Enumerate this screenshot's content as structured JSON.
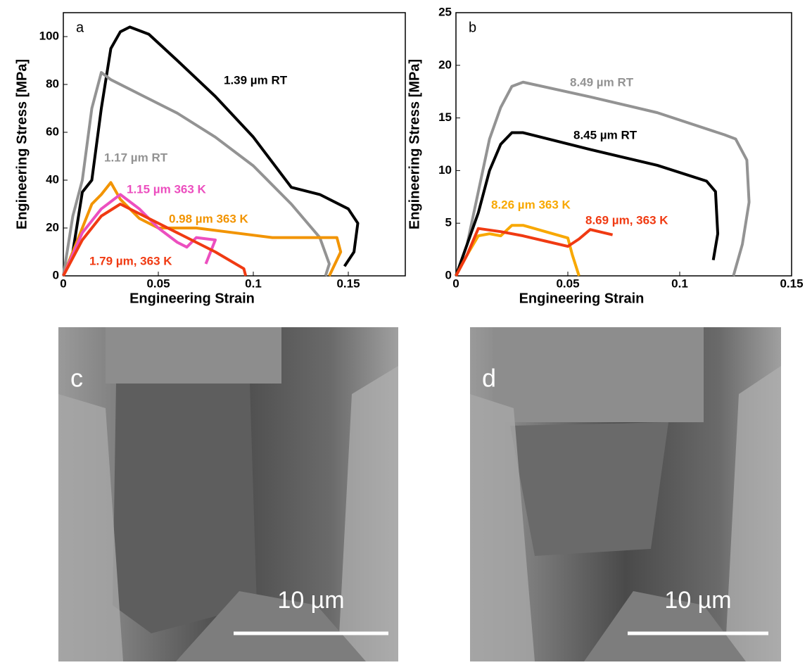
{
  "chart_data": [
    {
      "type": "line",
      "panel": "a",
      "xlabel": "Engineering Strain",
      "ylabel": "Engineering Stress [MPa]",
      "xlim": [
        0,
        0.18
      ],
      "ylim": [
        0,
        110
      ],
      "xticks": [
        0,
        0.05,
        0.1,
        0.15
      ],
      "yticks": [
        0,
        20,
        40,
        60,
        80,
        100
      ],
      "series": [
        {
          "name": "1.39 µm RT",
          "color": "#000000",
          "x": [
            0,
            0.005,
            0.01,
            0.015,
            0.02,
            0.025,
            0.03,
            0.035,
            0.045,
            0.06,
            0.08,
            0.1,
            0.12,
            0.135,
            0.15,
            0.155,
            0.153,
            0.148
          ],
          "values": [
            0,
            10,
            35,
            40,
            70,
            95,
            102,
            104,
            101,
            90,
            75,
            58,
            37,
            34,
            28,
            22,
            10,
            4
          ]
        },
        {
          "name": "1.17 µm RT",
          "color": "#939393",
          "x": [
            0,
            0.005,
            0.01,
            0.015,
            0.02,
            0.025,
            0.04,
            0.06,
            0.08,
            0.1,
            0.12,
            0.135,
            0.14,
            0.138
          ],
          "values": [
            0,
            25,
            40,
            70,
            85,
            82,
            76,
            68,
            58,
            46,
            30,
            16,
            5,
            0
          ]
        },
        {
          "name": "0.98 µm 363 K",
          "color": "#f29400",
          "x": [
            0,
            0.01,
            0.015,
            0.02,
            0.025,
            0.03,
            0.04,
            0.05,
            0.07,
            0.09,
            0.11,
            0.13,
            0.144,
            0.146,
            0.14
          ],
          "values": [
            0,
            20,
            30,
            34,
            39,
            32,
            24,
            20,
            20,
            18,
            16,
            16,
            16,
            10,
            0
          ]
        },
        {
          "name": "1.15 µm 363 K",
          "color": "#ec4fbf",
          "x": [
            0,
            0.01,
            0.02,
            0.03,
            0.04,
            0.05,
            0.06,
            0.065,
            0.07,
            0.08,
            0.075
          ],
          "values": [
            0,
            18,
            28,
            34,
            28,
            20,
            14,
            12,
            16,
            15,
            5
          ]
        },
        {
          "name": "1.79 µm, 363 K",
          "color": "#f03a12",
          "x": [
            0,
            0.01,
            0.02,
            0.03,
            0.04,
            0.06,
            0.08,
            0.095,
            0.096
          ],
          "values": [
            0,
            15,
            25,
            30,
            26,
            18,
            10,
            3,
            0
          ]
        }
      ]
    },
    {
      "type": "line",
      "panel": "b",
      "xlabel": "Engineering Strain",
      "ylabel": "Engineering Stress [MPa]",
      "xlim": [
        0,
        0.15
      ],
      "ylim": [
        0,
        25
      ],
      "xticks": [
        0,
        0.05,
        0.1,
        0.15
      ],
      "yticks": [
        0,
        5,
        10,
        15,
        20,
        25
      ],
      "series": [
        {
          "name": "8.49 µm RT",
          "color": "#939393",
          "x": [
            0,
            0.005,
            0.01,
            0.015,
            0.02,
            0.025,
            0.03,
            0.06,
            0.09,
            0.12,
            0.125,
            0.13,
            0.131,
            0.128,
            0.124
          ],
          "values": [
            0,
            3,
            8,
            13,
            16,
            18,
            18.4,
            17,
            15.5,
            13.4,
            13,
            11,
            7,
            3,
            0
          ]
        },
        {
          "name": "8.45 µm RT",
          "color": "#000000",
          "x": [
            0,
            0.005,
            0.01,
            0.015,
            0.02,
            0.025,
            0.03,
            0.06,
            0.09,
            0.112,
            0.116,
            0.117,
            0.115
          ],
          "values": [
            0,
            3,
            6,
            10,
            12.5,
            13.6,
            13.6,
            12,
            10.5,
            9,
            8,
            4,
            1.5
          ]
        },
        {
          "name": "8.26 µm 363 K",
          "color": "#f8a800",
          "x": [
            0,
            0.005,
            0.01,
            0.015,
            0.02,
            0.025,
            0.03,
            0.04,
            0.05,
            0.052,
            0.055
          ],
          "values": [
            0,
            2,
            3.8,
            4,
            3.8,
            4.8,
            4.8,
            4.2,
            3.6,
            2,
            0
          ]
        },
        {
          "name": "8.69 µm, 363 K",
          "color": "#f03a12",
          "x": [
            0,
            0.005,
            0.01,
            0.02,
            0.03,
            0.04,
            0.05,
            0.055,
            0.06,
            0.07
          ],
          "values": [
            0,
            2,
            4.5,
            4.2,
            3.8,
            3.3,
            2.8,
            3.5,
            4.4,
            3.9
          ]
        }
      ]
    }
  ],
  "images": [
    {
      "panel": "c",
      "scale": "10 µm"
    },
    {
      "panel": "d",
      "scale": "10 µm"
    }
  ]
}
